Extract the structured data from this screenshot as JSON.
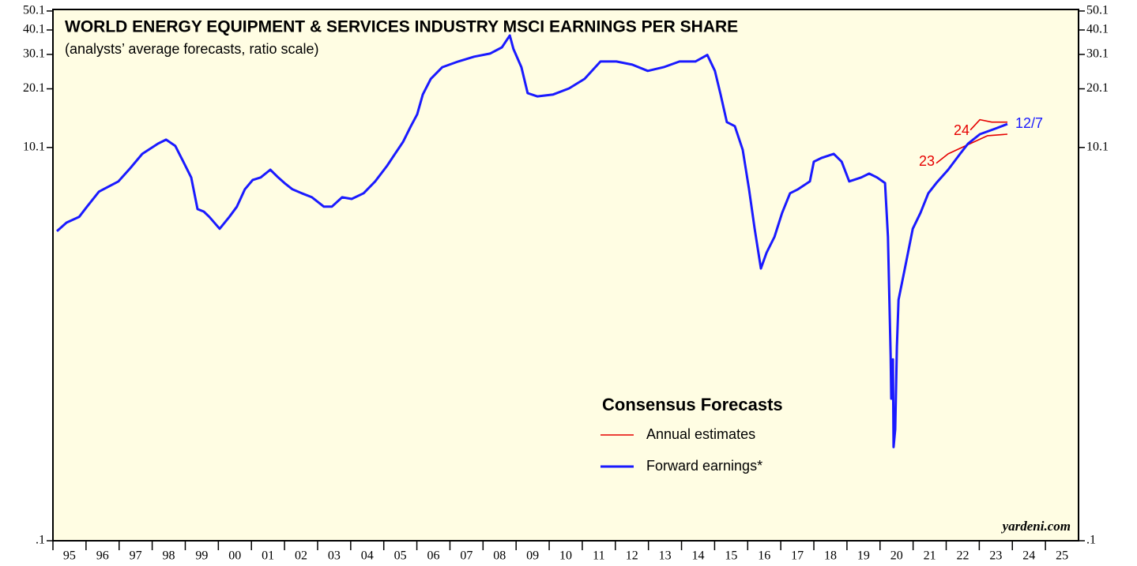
{
  "chart_data": {
    "type": "line",
    "title": "WORLD ENERGY EQUIPMENT & SERVICES INDUSTRY MSCI EARNINGS PER SHARE",
    "subtitle": "(analysts’ average forecasts, ratio scale)",
    "legend_title": "Consensus Forecasts",
    "legend": "lower center",
    "watermark": "yardeni.com",
    "log_scale": true,
    "xlim": [
      1995,
      2026
    ],
    "xticks": [
      {
        "value": 1995,
        "label": "95"
      },
      {
        "value": 1996,
        "label": "96"
      },
      {
        "value": 1997,
        "label": "97"
      },
      {
        "value": 1998,
        "label": "98"
      },
      {
        "value": 1999,
        "label": "99"
      },
      {
        "value": 2000,
        "label": "00"
      },
      {
        "value": 2001,
        "label": "01"
      },
      {
        "value": 2002,
        "label": "02"
      },
      {
        "value": 2003,
        "label": "03"
      },
      {
        "value": 2004,
        "label": "04"
      },
      {
        "value": 2005,
        "label": "05"
      },
      {
        "value": 2006,
        "label": "06"
      },
      {
        "value": 2007,
        "label": "07"
      },
      {
        "value": 2008,
        "label": "08"
      },
      {
        "value": 2009,
        "label": "09"
      },
      {
        "value": 2010,
        "label": "10"
      },
      {
        "value": 2011,
        "label": "11"
      },
      {
        "value": 2012,
        "label": "12"
      },
      {
        "value": 2013,
        "label": "13"
      },
      {
        "value": 2014,
        "label": "14"
      },
      {
        "value": 2015,
        "label": "15"
      },
      {
        "value": 2016,
        "label": "16"
      },
      {
        "value": 2017,
        "label": "17"
      },
      {
        "value": 2018,
        "label": "18"
      },
      {
        "value": 2019,
        "label": "19"
      },
      {
        "value": 2020,
        "label": "20"
      },
      {
        "value": 2021,
        "label": "21"
      },
      {
        "value": 2022,
        "label": "22"
      },
      {
        "value": 2023,
        "label": "23"
      },
      {
        "value": 2024,
        "label": "24"
      },
      {
        "value": 2025,
        "label": "25"
      }
    ],
    "ylim": [
      0.1,
      51
    ],
    "yticks": [
      {
        "value": 0.1,
        "label": ".1"
      },
      10.1,
      20.1,
      30.1,
      40.1,
      50.1
    ],
    "annotations": [
      {
        "text": "23",
        "color": "#e60000"
      },
      {
        "text": "24",
        "color": "#e60000"
      },
      {
        "text": "12/7",
        "color": "#1a1aff"
      }
    ],
    "series": [
      {
        "name": "Annual estimates",
        "color": "#e60000",
        "x": [
          2021.7,
          2022.06,
          2022.42,
          2022.73,
          2023.25,
          2023.85,
          null,
          2022.73,
          2023.02,
          2023.38,
          2023.85
        ],
        "values": [
          8.39,
          9.37,
          10.0,
          10.57,
          11.6,
          11.8,
          null,
          12.4,
          14.0,
          13.6,
          13.6
        ]
      },
      {
        "name": "Forward earnings*",
        "color": "#1a1aff",
        "x": [
          1995.12,
          1995.41,
          1995.79,
          1996.03,
          1996.39,
          1996.98,
          1997.34,
          1997.7,
          1998.18,
          1998.42,
          1998.7,
          1998.94,
          1999.18,
          1999.37,
          1999.56,
          1999.73,
          2000.04,
          2000.33,
          2000.56,
          2000.8,
          2001.04,
          2001.28,
          2001.57,
          2001.81,
          2002.0,
          2002.24,
          2002.52,
          2002.83,
          2003.19,
          2003.43,
          2003.74,
          2004.03,
          2004.39,
          2004.74,
          2005.1,
          2005.34,
          2005.58,
          2005.82,
          2006.01,
          2006.18,
          2006.42,
          2006.77,
          2007.25,
          2007.73,
          2008.21,
          2008.57,
          2008.81,
          2008.92,
          2009.16,
          2009.35,
          2009.64,
          2010.12,
          2010.6,
          2011.07,
          2011.55,
          2012.03,
          2012.51,
          2012.98,
          2013.46,
          2013.94,
          2014.42,
          2014.78,
          2015.01,
          2015.18,
          2015.37,
          2015.61,
          2015.85,
          2016.04,
          2016.21,
          2016.4,
          2016.57,
          2016.81,
          2017.04,
          2017.28,
          2017.52,
          2017.88,
          2018.0,
          2018.24,
          2018.6,
          2018.84,
          2019.07,
          2019.43,
          2019.67,
          2019.91,
          2020.15,
          2020.24,
          2020.32,
          2020.34,
          2020.39,
          2020.41,
          2020.46,
          2020.51,
          2020.56,
          2020.75,
          2020.99,
          2021.22,
          2021.46,
          2021.7,
          2022.06,
          2022.42,
          2022.66,
          2023.02,
          2023.49,
          2023.85
        ],
        "values": [
          3.78,
          4.18,
          4.47,
          5.04,
          6.01,
          6.78,
          7.93,
          9.37,
          10.57,
          11.07,
          10.28,
          8.55,
          7.1,
          4.9,
          4.76,
          4.47,
          3.89,
          4.47,
          5.04,
          6.18,
          6.9,
          7.1,
          7.78,
          7.1,
          6.65,
          6.18,
          5.9,
          5.63,
          5.04,
          5.04,
          5.63,
          5.52,
          5.9,
          6.78,
          8.15,
          9.37,
          10.77,
          12.97,
          14.9,
          18.8,
          22.6,
          25.9,
          27.7,
          29.3,
          30.4,
          32.7,
          37.6,
          32.1,
          25.9,
          19.1,
          18.4,
          18.8,
          20.2,
          22.6,
          27.7,
          27.7,
          26.7,
          24.8,
          25.9,
          27.7,
          27.7,
          29.9,
          24.8,
          18.8,
          13.6,
          12.97,
          9.82,
          6.18,
          3.89,
          2.44,
          2.94,
          3.54,
          4.68,
          5.9,
          6.18,
          6.78,
          8.55,
          8.95,
          9.37,
          8.55,
          6.78,
          7.1,
          7.43,
          7.1,
          6.65,
          3.54,
          0.88,
          0.53,
          0.84,
          0.3,
          0.37,
          0.97,
          1.69,
          2.44,
          3.89,
          4.68,
          5.9,
          6.65,
          7.78,
          9.37,
          10.57,
          11.8,
          12.6,
          13.3
        ]
      }
    ]
  }
}
